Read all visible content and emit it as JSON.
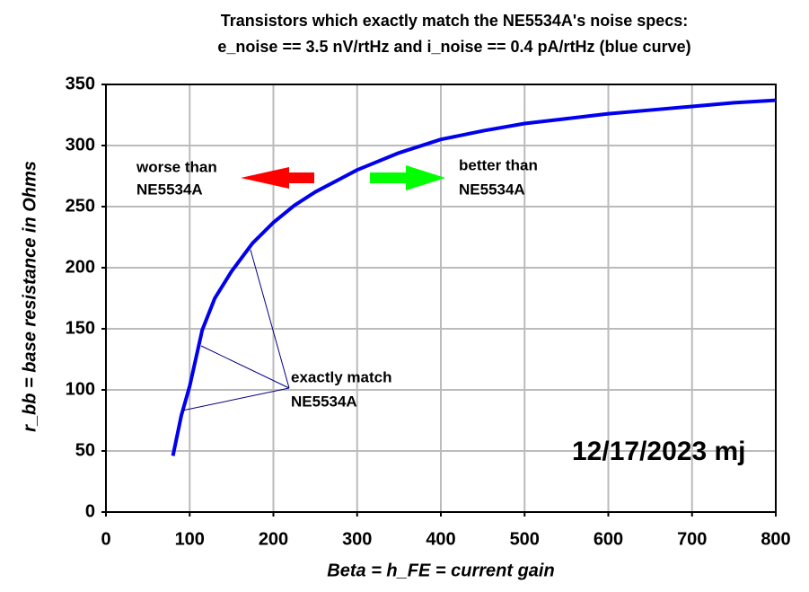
{
  "chart_data": {
    "type": "line",
    "title": [
      "Transistors which exactly match the NE5534A's  noise specs:",
      "e_noise == 3.5 nV/rtHz and i_noise == 0.4 pA/rtHz  (blue curve)"
    ],
    "x_label": "Beta  = h_FE = current gain",
    "y_label": "r_bb  =  base resistance in Ohms",
    "x": [
      80,
      90,
      100,
      115,
      130,
      150,
      175,
      200,
      225,
      250,
      300,
      350,
      400,
      450,
      500,
      550,
      600,
      650,
      700,
      750,
      800
    ],
    "series": [
      {
        "name": "NE5534A match",
        "color": "#0000ee",
        "values": [
          46,
          79,
          103,
          149,
          175,
          197,
          220,
          237,
          251,
          262,
          280,
          294,
          305,
          312,
          318,
          322,
          326,
          329,
          332,
          335,
          337
        ]
      }
    ],
    "xlim": [
      0,
      800
    ],
    "xticks": [
      0,
      100,
      200,
      300,
      400,
      500,
      600,
      700,
      800
    ],
    "ylim": [
      0,
      350
    ],
    "yticks": [
      0,
      50,
      100,
      150,
      200,
      250,
      300,
      350
    ],
    "grid": true,
    "annotations": {
      "worse": [
        "worse than",
        "NE5534A"
      ],
      "better": [
        "better than",
        "NE5534A"
      ],
      "match": [
        "exactly match",
        "NE5534A"
      ],
      "date": "12/17/2023  mj"
    }
  }
}
